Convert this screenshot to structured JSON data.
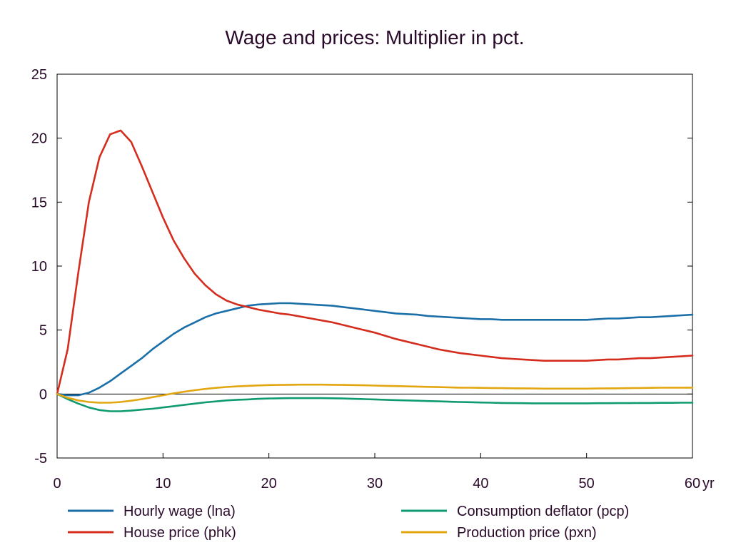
{
  "chart_data": {
    "type": "line",
    "title": "Wage and prices: Multiplier in pct.",
    "xlabel": "",
    "ylabel": "",
    "x_unit": "yr",
    "xlim": [
      0,
      60
    ],
    "ylim": [
      -5,
      25
    ],
    "x_ticks": [
      0,
      10,
      20,
      30,
      40,
      50,
      60
    ],
    "y_ticks": [
      -5,
      0,
      5,
      10,
      15,
      20,
      25
    ],
    "grid": false,
    "legend_position": "bottom",
    "x": [
      0,
      1,
      2,
      3,
      4,
      5,
      6,
      7,
      8,
      9,
      10,
      11,
      12,
      13,
      14,
      15,
      16,
      17,
      18,
      19,
      20,
      21,
      22,
      23,
      24,
      25,
      26,
      27,
      28,
      29,
      30,
      31,
      32,
      33,
      34,
      35,
      36,
      37,
      38,
      39,
      40,
      41,
      42,
      43,
      44,
      45,
      46,
      47,
      48,
      49,
      50,
      51,
      52,
      53,
      54,
      55,
      56,
      57,
      58,
      59,
      60
    ],
    "series": [
      {
        "name": "Hourly wage (lna)",
        "color": "#1b6fa8",
        "values": [
          0,
          -0.1,
          -0.1,
          0.1,
          0.5,
          1.0,
          1.6,
          2.2,
          2.8,
          3.5,
          4.1,
          4.7,
          5.2,
          5.6,
          6.0,
          6.3,
          6.5,
          6.7,
          6.9,
          7.0,
          7.05,
          7.1,
          7.1,
          7.05,
          7.0,
          6.95,
          6.9,
          6.8,
          6.7,
          6.6,
          6.5,
          6.4,
          6.3,
          6.25,
          6.2,
          6.1,
          6.05,
          6.0,
          5.95,
          5.9,
          5.85,
          5.85,
          5.8,
          5.8,
          5.8,
          5.8,
          5.8,
          5.8,
          5.8,
          5.8,
          5.8,
          5.85,
          5.9,
          5.9,
          5.95,
          6.0,
          6.0,
          6.05,
          6.1,
          6.15,
          6.2
        ]
      },
      {
        "name": "House price (phk)",
        "color": "#d42d1e",
        "values": [
          0,
          3.5,
          9.5,
          15.0,
          18.5,
          20.3,
          20.6,
          19.7,
          17.8,
          15.8,
          13.8,
          12.0,
          10.6,
          9.4,
          8.5,
          7.8,
          7.3,
          7.0,
          6.8,
          6.6,
          6.45,
          6.3,
          6.2,
          6.05,
          5.9,
          5.75,
          5.6,
          5.4,
          5.2,
          5.0,
          4.8,
          4.55,
          4.3,
          4.1,
          3.9,
          3.7,
          3.5,
          3.35,
          3.2,
          3.1,
          3.0,
          2.9,
          2.8,
          2.75,
          2.7,
          2.65,
          2.6,
          2.6,
          2.6,
          2.6,
          2.6,
          2.65,
          2.7,
          2.7,
          2.75,
          2.8,
          2.8,
          2.85,
          2.9,
          2.95,
          3.0
        ]
      },
      {
        "name": "Consumption deflator (pcp)",
        "color": "#0f9a6f",
        "values": [
          0,
          -0.4,
          -0.75,
          -1.05,
          -1.25,
          -1.35,
          -1.35,
          -1.3,
          -1.22,
          -1.15,
          -1.05,
          -0.95,
          -0.85,
          -0.75,
          -0.65,
          -0.58,
          -0.5,
          -0.45,
          -0.42,
          -0.38,
          -0.35,
          -0.33,
          -0.32,
          -0.32,
          -0.32,
          -0.32,
          -0.33,
          -0.35,
          -0.38,
          -0.4,
          -0.42,
          -0.45,
          -0.48,
          -0.5,
          -0.52,
          -0.55,
          -0.57,
          -0.6,
          -0.62,
          -0.64,
          -0.66,
          -0.68,
          -0.7,
          -0.71,
          -0.72,
          -0.73,
          -0.73,
          -0.73,
          -0.73,
          -0.73,
          -0.73,
          -0.72,
          -0.72,
          -0.71,
          -0.71,
          -0.7,
          -0.7,
          -0.69,
          -0.69,
          -0.68,
          -0.68
        ]
      },
      {
        "name": "Production price (pxn)",
        "color": "#e2a610",
        "values": [
          0,
          -0.3,
          -0.5,
          -0.62,
          -0.68,
          -0.68,
          -0.62,
          -0.52,
          -0.4,
          -0.25,
          -0.1,
          0.05,
          0.18,
          0.3,
          0.4,
          0.48,
          0.55,
          0.6,
          0.64,
          0.67,
          0.7,
          0.71,
          0.72,
          0.73,
          0.73,
          0.73,
          0.72,
          0.71,
          0.7,
          0.68,
          0.66,
          0.64,
          0.62,
          0.6,
          0.58,
          0.56,
          0.54,
          0.52,
          0.5,
          0.49,
          0.48,
          0.47,
          0.46,
          0.45,
          0.44,
          0.43,
          0.42,
          0.42,
          0.42,
          0.42,
          0.42,
          0.43,
          0.44,
          0.45,
          0.46,
          0.47,
          0.48,
          0.49,
          0.5,
          0.5,
          0.5
        ]
      }
    ]
  }
}
